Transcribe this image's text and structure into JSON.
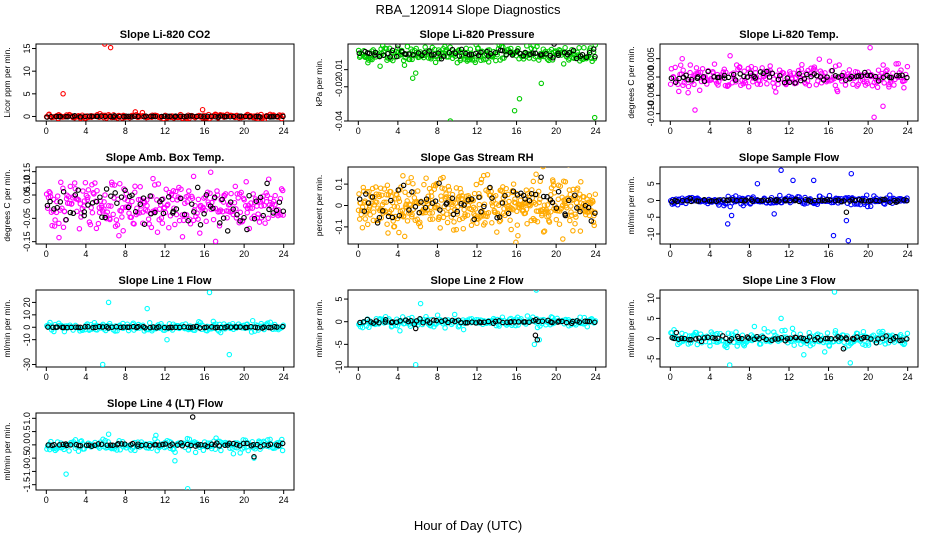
{
  "figure": {
    "title": "RBA_120914  Slope Diagnostics",
    "xlabel": "Hour of Day (UTC)"
  },
  "chart_data": [
    {
      "type": "scatter",
      "title": "Slope Li-820 CO2",
      "ylabel": "Licor ppm per min.",
      "xlim": [
        0,
        24
      ],
      "ylim": [
        -1,
        16
      ],
      "xticks": [
        "0",
        "4",
        "8",
        "12",
        "16",
        "20",
        "24"
      ],
      "yticks": [
        "0",
        "5",
        "10",
        "15"
      ],
      "series": [
        {
          "name": "",
          "color": "#ff0000",
          "base": 0.0,
          "spread": 0.5,
          "n": 200,
          "outliers": [
            [
              1.7,
              5.0
            ],
            [
              5.9,
              16.0
            ],
            [
              6.5,
              15.2
            ],
            [
              9.0,
              1.0
            ],
            [
              15.8,
              1.5
            ]
          ]
        },
        {
          "name": "",
          "color": "#000000",
          "base": 0.0,
          "spread": 0.15,
          "n": 70,
          "outliers": []
        }
      ]
    },
    {
      "type": "scatter",
      "title": "Slope Li-820 Pressure",
      "ylabel": "kPa per min.",
      "xlim": [
        0,
        24
      ],
      "ylim": [
        -0.04,
        0.005
      ],
      "xticks": [
        "0",
        "4",
        "8",
        "12",
        "16",
        "20",
        "24"
      ],
      "yticks": [
        "-0.04",
        "-0.02",
        "-0.01"
      ],
      "series": [
        {
          "name": "",
          "color": "#00cc00",
          "base": -0.001,
          "spread": 0.006,
          "n": 260,
          "outliers": [
            [
              2.2,
              -0.008
            ],
            [
              5.5,
              -0.015
            ],
            [
              5.8,
              -0.012
            ],
            [
              9.3,
              -0.04
            ],
            [
              11.0,
              -0.005
            ],
            [
              15.8,
              -0.034
            ],
            [
              16.3,
              -0.027
            ],
            [
              23.9,
              -0.038
            ],
            [
              18.5,
              -0.018
            ]
          ]
        },
        {
          "name": "",
          "color": "#000000",
          "base": -0.001,
          "spread": 0.003,
          "n": 70,
          "outliers": [
            [
              4.0,
              0.004
            ],
            [
              19.8,
              0.005
            ],
            [
              23.8,
              0.002
            ]
          ]
        }
      ]
    },
    {
      "type": "scatter",
      "title": "Slope Li-820 Temp.",
      "ylabel": "degrees C per min.",
      "xlim": [
        0,
        24
      ],
      "ylim": [
        -0.012,
        0.009
      ],
      "xticks": [
        "0",
        "4",
        "8",
        "12",
        "16",
        "20",
        "24"
      ],
      "yticks": [
        "-0.010",
        "-0.005",
        "0.000",
        "0.005"
      ],
      "series": [
        {
          "name": "",
          "color": "#ff00ff",
          "base": 0.0,
          "spread": 0.004,
          "n": 240,
          "outliers": [
            [
              1.2,
              0.005
            ],
            [
              2.5,
              -0.009
            ],
            [
              20.2,
              0.008
            ],
            [
              20.6,
              -0.011
            ],
            [
              21.5,
              -0.008
            ]
          ]
        },
        {
          "name": "",
          "color": "#000000",
          "base": 0.0,
          "spread": 0.0015,
          "n": 70,
          "outliers": []
        }
      ]
    },
    {
      "type": "scatter",
      "title": "Slope Amb. Box Temp.",
      "ylabel": "degrees C per min.",
      "xlim": [
        0,
        24
      ],
      "ylim": [
        -0.16,
        0.17
      ],
      "xticks": [
        "0",
        "4",
        "8",
        "12",
        "16",
        "20",
        "24"
      ],
      "yticks": [
        "-0.15",
        "-0.05",
        "0.05",
        "0.10",
        "0.15"
      ],
      "series": [
        {
          "name": "",
          "color": "#ff00ff",
          "base": 0.0,
          "spread": 0.12,
          "n": 300,
          "outliers": []
        },
        {
          "name": "",
          "color": "#000000",
          "base": 0.0,
          "spread": 0.1,
          "n": 75,
          "outliers": []
        }
      ]
    },
    {
      "type": "scatter",
      "title": "Slope Gas Stream RH",
      "ylabel": "percent per min.",
      "xlim": [
        0,
        24
      ],
      "ylim": [
        -0.18,
        0.18
      ],
      "xticks": [
        "0",
        "4",
        "8",
        "12",
        "16",
        "20",
        "24"
      ],
      "yticks": [
        "-0.1",
        "0",
        "0.1"
      ],
      "series": [
        {
          "name": "",
          "color": "#ffaa00",
          "base": 0.0,
          "spread": 0.13,
          "n": 460,
          "outliers": []
        },
        {
          "name": "",
          "color": "#000000",
          "base": 0.0,
          "spread": 0.1,
          "n": 70,
          "outliers": []
        }
      ]
    },
    {
      "type": "scatter",
      "title": "Slope Sample Flow",
      "ylabel": "ml/min per min.",
      "xlim": [
        0,
        24
      ],
      "ylim": [
        -13,
        10
      ],
      "xticks": [
        "0",
        "4",
        "8",
        "12",
        "16",
        "20",
        "24"
      ],
      "yticks": [
        "-10",
        "-5",
        "0",
        "5"
      ],
      "series": [
        {
          "name": "",
          "color": "#0000ff",
          "base": 0.0,
          "spread": 1.5,
          "n": 240,
          "outliers": [
            [
              5.8,
              -7.0
            ],
            [
              6.2,
              -4.5
            ],
            [
              11.2,
              9.0
            ],
            [
              12.4,
              6.0
            ],
            [
              14.5,
              6.0
            ],
            [
              16.5,
              -10.5
            ],
            [
              18.0,
              -12.0
            ],
            [
              17.8,
              -6.0
            ],
            [
              10.5,
              -4.0
            ],
            [
              8.8,
              5.0
            ],
            [
              18.3,
              8.0
            ]
          ]
        },
        {
          "name": "",
          "color": "#000000",
          "base": 0.0,
          "spread": 0.5,
          "n": 70,
          "outliers": [
            [
              17.8,
              -3.5
            ]
          ]
        }
      ]
    },
    {
      "type": "scatter",
      "title": "Slope Line 1 Flow",
      "ylabel": "ml/min per min.",
      "xlim": [
        0,
        24
      ],
      "ylim": [
        -32,
        30
      ],
      "xticks": [
        "0",
        "4",
        "8",
        "12",
        "16",
        "20",
        "24"
      ],
      "yticks": [
        "-30",
        "-10",
        "0",
        "10",
        "20"
      ],
      "series": [
        {
          "name": "",
          "color": "#00ffff",
          "base": 0.0,
          "spread": 4,
          "n": 220,
          "outliers": [
            [
              5.7,
              -30.0
            ],
            [
              6.3,
              20.0
            ],
            [
              10.2,
              15.0
            ],
            [
              16.5,
              28.0
            ],
            [
              18.5,
              -22.0
            ],
            [
              12.2,
              -10.0
            ]
          ]
        },
        {
          "name": "",
          "color": "#000000",
          "base": 0.0,
          "spread": 0.6,
          "n": 70,
          "outliers": []
        }
      ]
    },
    {
      "type": "scatter",
      "title": "Slope Line 2 Flow",
      "ylabel": "ml/min per min.",
      "xlim": [
        0,
        24
      ],
      "ylim": [
        -10,
        7
      ],
      "xticks": [
        "0",
        "4",
        "8",
        "12",
        "16",
        "20",
        "24"
      ],
      "yticks": [
        "-10",
        "-5",
        "0",
        "5"
      ],
      "series": [
        {
          "name": "",
          "color": "#00ffff",
          "base": 0.0,
          "spread": 1.2,
          "n": 220,
          "outliers": [
            [
              5.8,
              -9.5
            ],
            [
              6.3,
              4.0
            ],
            [
              4.2,
              -2.0
            ],
            [
              18.0,
              7.0
            ],
            [
              17.8,
              -5.0
            ],
            [
              18.3,
              -4.0
            ]
          ]
        },
        {
          "name": "",
          "color": "#000000",
          "base": 0.0,
          "spread": 0.5,
          "n": 70,
          "outliers": [
            [
              5.8,
              -1.5
            ],
            [
              17.9,
              -3.0
            ],
            [
              18.1,
              -4.0
            ]
          ]
        }
      ]
    },
    {
      "type": "scatter",
      "title": "Slope Line 3 Flow",
      "ylabel": "ml/min per min.",
      "xlim": [
        0,
        24
      ],
      "ylim": [
        -7,
        12
      ],
      "xticks": [
        "0",
        "4",
        "8",
        "12",
        "16",
        "20",
        "24"
      ],
      "yticks": [
        "-5",
        "0",
        "5",
        "10"
      ],
      "series": [
        {
          "name": "",
          "color": "#00ffff",
          "base": 0.0,
          "spread": 2.2,
          "n": 230,
          "outliers": [
            [
              6.0,
              -6.5
            ],
            [
              11.2,
              5.0
            ],
            [
              16.6,
              11.5
            ],
            [
              18.2,
              -6.0
            ],
            [
              8.5,
              3.0
            ],
            [
              13.5,
              -4.0
            ]
          ]
        },
        {
          "name": "",
          "color": "#000000",
          "base": 0.0,
          "spread": 0.7,
          "n": 70,
          "outliers": [
            [
              0.6,
              1.5
            ],
            [
              17.5,
              -2.5
            ]
          ]
        }
      ]
    },
    {
      "type": "scatter",
      "title": "Slope Line 4 (LT) Flow",
      "ylabel": "ml/min per min.",
      "xlim": [
        0,
        24
      ],
      "ylim": [
        -1.7,
        1.2
      ],
      "xticks": [
        "0",
        "4",
        "8",
        "12",
        "16",
        "20",
        "24"
      ],
      "yticks": [
        "-1.5",
        "-1.0",
        "-0.5",
        "0.0",
        "0.5",
        "1.0"
      ],
      "series": [
        {
          "name": "",
          "color": "#00ffff",
          "base": 0.0,
          "spread": 0.25,
          "n": 220,
          "outliers": [
            [
              2.0,
              -1.1
            ],
            [
              13.0,
              -0.6
            ],
            [
              14.3,
              -1.65
            ],
            [
              21.0,
              -0.5
            ],
            [
              6.3,
              0.4
            ]
          ]
        },
        {
          "name": "",
          "color": "#000000",
          "base": 0.0,
          "spread": 0.08,
          "n": 70,
          "outliers": [
            [
              14.8,
              1.05
            ],
            [
              21.0,
              -0.45
            ]
          ]
        }
      ]
    }
  ]
}
